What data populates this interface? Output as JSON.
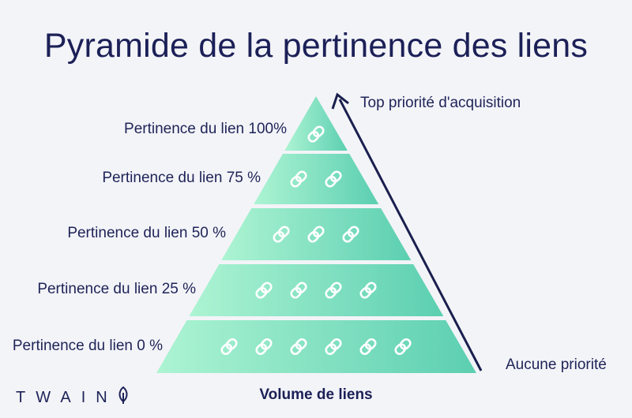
{
  "title": "Pyramide de la pertinence des liens",
  "tiers": [
    {
      "label": "Pertinence du lien 100%",
      "links": 1
    },
    {
      "label": "Pertinence du lien 75 %",
      "links": 2
    },
    {
      "label": "Pertinence du lien 50 %",
      "links": 3
    },
    {
      "label": "Pertinence du lien 25 %",
      "links": 4
    },
    {
      "label": "Pertinence du lien 0 %",
      "links": 6
    }
  ],
  "arrow": {
    "top_label": "Top priorité d'acquisition",
    "bottom_label": "Aucune priorité"
  },
  "x_label": "Volume de liens",
  "brand": {
    "name": "TWAIN",
    "icon": "leaf-icon"
  },
  "colors": {
    "text": "#1e2357",
    "pyramid_light": "#a7f2d0",
    "pyramid_dark": "#5fd0b2",
    "arrow": "#1a1f4e"
  },
  "link_icon": "chain-link-icon"
}
